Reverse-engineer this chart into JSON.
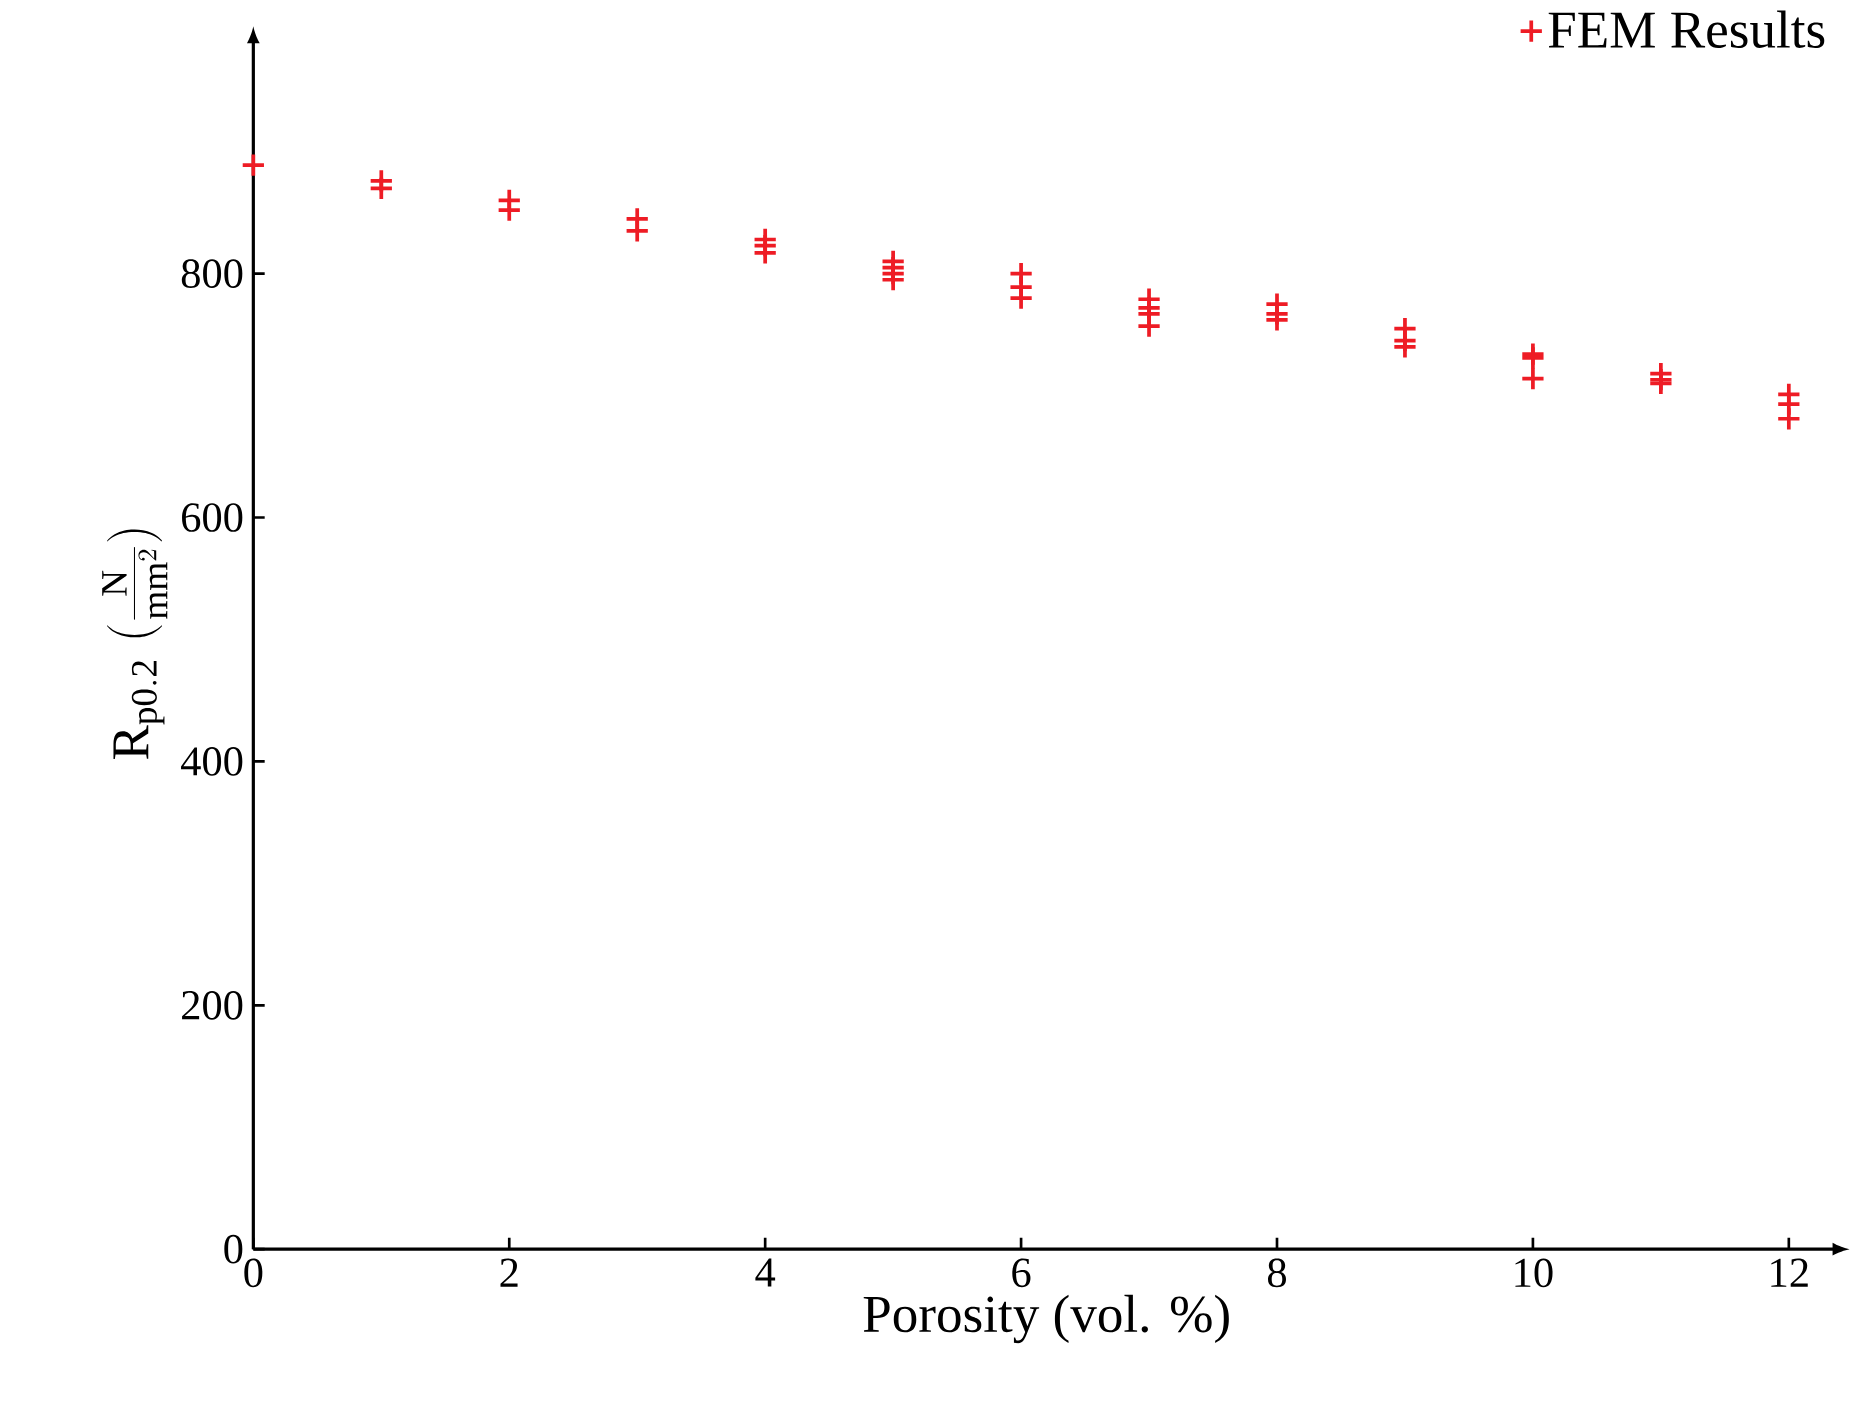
{
  "chart_data": {
    "type": "scatter",
    "xlabel": "Porosity (vol. %)",
    "ylabel": "\\mathrm{R}_{\\mathrm{p0.2}}\\;(\\frac{\\mathrm{N}}{\\mathrm{mm}^2})",
    "series": [
      {
        "name": "FEM Results",
        "color": "#ee1c25",
        "marker": "cross",
        "x": [
          0,
          1,
          1,
          2,
          2,
          3,
          3,
          4,
          4,
          4,
          5,
          5,
          5,
          5,
          6,
          6,
          6,
          7,
          7,
          7,
          7,
          8,
          8,
          8,
          9,
          9,
          9,
          10,
          10,
          10,
          11,
          11,
          11,
          12,
          12,
          12
        ],
        "values": [
          889,
          876,
          870,
          860,
          852,
          845,
          835,
          828,
          823,
          817,
          810,
          805,
          800,
          795,
          800,
          789,
          780,
          779,
          772,
          767,
          757,
          775,
          767,
          762,
          755,
          745,
          740,
          734,
          731,
          714,
          718,
          713,
          710,
          701,
          693,
          681
        ]
      }
    ],
    "xlim": [
      0,
      12.4
    ],
    "ylim": [
      0,
      995
    ],
    "xticks": [
      0,
      2,
      4,
      6,
      8,
      10,
      12
    ],
    "yticks": [
      0,
      200,
      400,
      600,
      800
    ],
    "grid": false,
    "legend": "top right"
  }
}
